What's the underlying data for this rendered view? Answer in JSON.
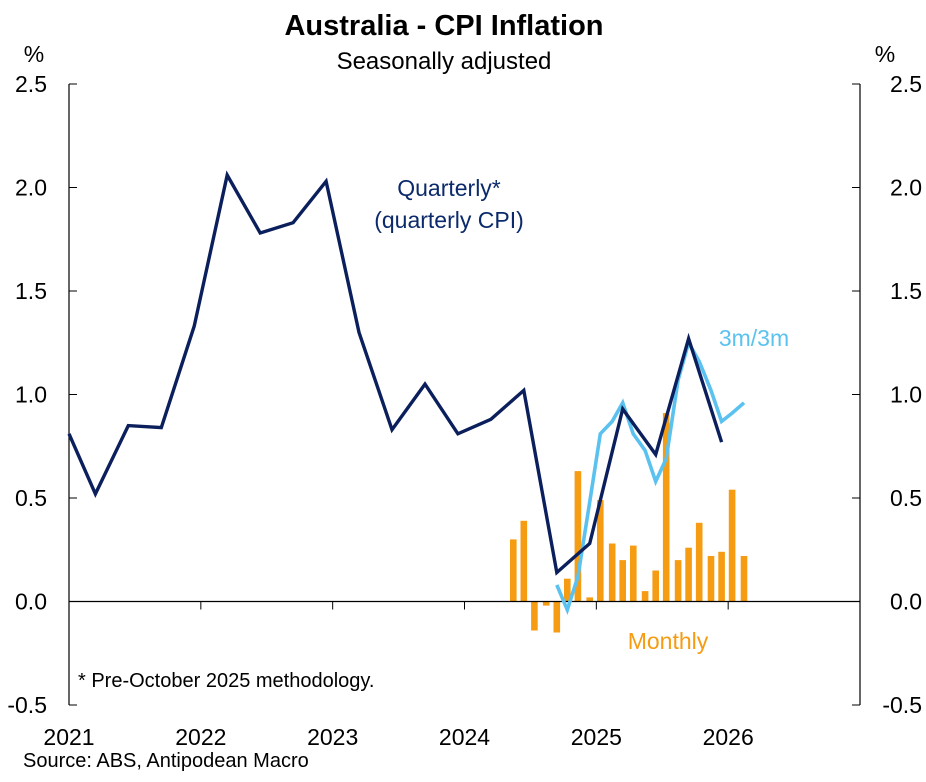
{
  "chart_data": {
    "type": "line",
    "title": "Australia - CPI Inflation",
    "subtitle": "Seasonally adjusted",
    "unit_left": "%",
    "unit_right": "%",
    "ylim": [
      -0.5,
      2.5
    ],
    "y_ticks": [
      "-0.5",
      "0.0",
      "0.5",
      "1.0",
      "1.5",
      "2.0",
      "2.5"
    ],
    "y_tick_values": [
      -0.5,
      0.0,
      0.5,
      1.0,
      1.5,
      2.0,
      2.5
    ],
    "x_range": [
      2021.0,
      2027.0
    ],
    "x_ticks": [
      "2021",
      "2022",
      "2023",
      "2024",
      "2025",
      "2026"
    ],
    "x_tick_values": [
      2021,
      2022,
      2023,
      2024,
      2025,
      2026
    ],
    "series": [
      {
        "name": "Quarterly (quarterly CPI)",
        "label_line1": "Quarterly*",
        "label_line2": "(quarterly CPI)",
        "kind": "line",
        "color": "#0b1f5c",
        "points": [
          {
            "x": 2021.0,
            "y": 0.81
          },
          {
            "x": 2021.2,
            "y": 0.52
          },
          {
            "x": 2021.45,
            "y": 0.85
          },
          {
            "x": 2021.7,
            "y": 0.84
          },
          {
            "x": 2021.95,
            "y": 1.33
          },
          {
            "x": 2022.2,
            "y": 2.06
          },
          {
            "x": 2022.45,
            "y": 1.78
          },
          {
            "x": 2022.7,
            "y": 1.83
          },
          {
            "x": 2022.95,
            "y": 2.03
          },
          {
            "x": 2023.2,
            "y": 1.3
          },
          {
            "x": 2023.45,
            "y": 0.83
          },
          {
            "x": 2023.7,
            "y": 1.05
          },
          {
            "x": 2023.95,
            "y": 0.81
          },
          {
            "x": 2024.2,
            "y": 0.88
          },
          {
            "x": 2024.45,
            "y": 1.02
          },
          {
            "x": 2024.7,
            "y": 0.14
          },
          {
            "x": 2024.95,
            "y": 0.28
          },
          {
            "x": 2025.2,
            "y": 0.93
          },
          {
            "x": 2025.45,
            "y": 0.71
          },
          {
            "x": 2025.7,
            "y": 1.27
          },
          {
            "x": 2025.95,
            "y": 0.77
          }
        ]
      },
      {
        "name": "3m/3m",
        "label": "3m/3m",
        "kind": "line",
        "color": "#5bc2ef",
        "points": [
          {
            "x": 2024.7,
            "y": 0.08
          },
          {
            "x": 2024.78,
            "y": -0.04
          },
          {
            "x": 2024.86,
            "y": 0.12
          },
          {
            "x": 2024.95,
            "y": 0.48
          },
          {
            "x": 2025.03,
            "y": 0.81
          },
          {
            "x": 2025.12,
            "y": 0.87
          },
          {
            "x": 2025.2,
            "y": 0.96
          },
          {
            "x": 2025.28,
            "y": 0.81
          },
          {
            "x": 2025.37,
            "y": 0.73
          },
          {
            "x": 2025.45,
            "y": 0.58
          },
          {
            "x": 2025.53,
            "y": 0.69
          },
          {
            "x": 2025.62,
            "y": 1.07
          },
          {
            "x": 2025.7,
            "y": 1.25
          },
          {
            "x": 2025.78,
            "y": 1.16
          },
          {
            "x": 2025.87,
            "y": 1.02
          },
          {
            "x": 2025.95,
            "y": 0.87
          },
          {
            "x": 2026.03,
            "y": 0.91
          },
          {
            "x": 2026.12,
            "y": 0.96
          }
        ]
      },
      {
        "name": "Monthly",
        "label": "Monthly",
        "kind": "bar",
        "color": "#f59c12",
        "bar_width_years": 0.05,
        "points": [
          {
            "x": 2024.37,
            "y": 0.3
          },
          {
            "x": 2024.45,
            "y": 0.39
          },
          {
            "x": 2024.53,
            "y": -0.14
          },
          {
            "x": 2024.62,
            "y": -0.02
          },
          {
            "x": 2024.7,
            "y": -0.15
          },
          {
            "x": 2024.78,
            "y": 0.11
          },
          {
            "x": 2024.86,
            "y": 0.63
          },
          {
            "x": 2024.95,
            "y": 0.02
          },
          {
            "x": 2025.03,
            "y": 0.49
          },
          {
            "x": 2025.12,
            "y": 0.28
          },
          {
            "x": 2025.2,
            "y": 0.2
          },
          {
            "x": 2025.28,
            "y": 0.27
          },
          {
            "x": 2025.37,
            "y": 0.05
          },
          {
            "x": 2025.45,
            "y": 0.15
          },
          {
            "x": 2025.53,
            "y": 0.91
          },
          {
            "x": 2025.62,
            "y": 0.2
          },
          {
            "x": 2025.7,
            "y": 0.26
          },
          {
            "x": 2025.78,
            "y": 0.38
          },
          {
            "x": 2025.87,
            "y": 0.22
          },
          {
            "x": 2025.95,
            "y": 0.24
          },
          {
            "x": 2026.03,
            "y": 0.54
          },
          {
            "x": 2026.12,
            "y": 0.22
          }
        ]
      }
    ],
    "footnote": "* Pre-October 2025 methodology.",
    "source": "Source: ABS, Antipodean Macro"
  }
}
